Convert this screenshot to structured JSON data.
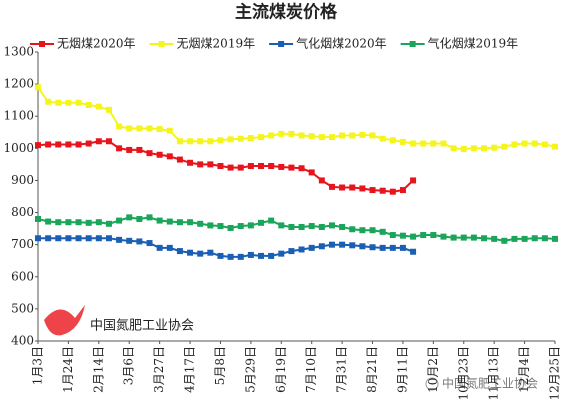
{
  "chart_data": {
    "type": "line",
    "title": "主流煤炭价格",
    "categories": [
      "1月3日",
      null,
      null,
      "1月24日",
      null,
      null,
      "2月14日",
      null,
      null,
      "3月6日",
      null,
      null,
      "3月27日",
      null,
      null,
      "4月17日",
      null,
      null,
      "5月8日",
      null,
      null,
      "5月29日",
      null,
      null,
      "6月19日",
      null,
      null,
      "7月10日",
      null,
      null,
      "7月31日",
      null,
      null,
      "8月21日",
      null,
      null,
      "9月11日",
      null,
      null,
      "10月2日",
      null,
      null,
      "10月23日",
      null,
      null,
      "11月13日",
      null,
      null,
      "12月4日",
      null,
      null,
      "12月25日"
    ],
    "series": [
      {
        "name": "无烟煤2020年",
        "color": "#e8141c",
        "values": [
          1010,
          1012,
          1012,
          1012,
          1012,
          1015,
          1022,
          1022,
          1000,
          995,
          995,
          985,
          980,
          975,
          965,
          955,
          950,
          950,
          945,
          940,
          940,
          945,
          945,
          945,
          942,
          940,
          938,
          925,
          900,
          880,
          878,
          878,
          875,
          870,
          868,
          865,
          870,
          900,
          null,
          null,
          null,
          null,
          null,
          null,
          null,
          null,
          null,
          null,
          null,
          null,
          null,
          null
        ]
      },
      {
        "name": "无烟煤2019年",
        "color": "#f5f51e",
        "values": [
          1190,
          1145,
          1142,
          1142,
          1142,
          1135,
          1130,
          1120,
          1068,
          1062,
          1062,
          1062,
          1060,
          1055,
          1022,
          1022,
          1022,
          1022,
          1025,
          1028,
          1030,
          1032,
          1035,
          1040,
          1045,
          1045,
          1040,
          1038,
          1035,
          1035,
          1040,
          1040,
          1042,
          1040,
          1030,
          1025,
          1020,
          1015,
          1015,
          1015,
          1015,
          1000,
          998,
          1000,
          1000,
          1002,
          1005,
          1012,
          1015,
          1015,
          1012,
          1005
        ]
      },
      {
        "name": "气化烟煤2020年",
        "color": "#1a5fb4",
        "values": [
          720,
          720,
          720,
          720,
          720,
          720,
          720,
          720,
          715,
          712,
          710,
          705,
          690,
          690,
          680,
          675,
          672,
          675,
          665,
          662,
          662,
          668,
          665,
          665,
          672,
          680,
          685,
          690,
          695,
          700,
          700,
          698,
          695,
          692,
          690,
          690,
          690,
          678,
          null,
          null,
          null,
          null,
          null,
          null,
          null,
          null,
          null,
          null,
          null,
          null,
          null,
          null
        ]
      },
      {
        "name": "气化烟煤2019年",
        "color": "#1aa55a",
        "values": [
          780,
          772,
          770,
          770,
          770,
          768,
          770,
          765,
          775,
          785,
          780,
          785,
          775,
          772,
          770,
          770,
          765,
          760,
          758,
          752,
          758,
          760,
          768,
          775,
          760,
          755,
          755,
          758,
          755,
          760,
          755,
          748,
          745,
          745,
          740,
          730,
          728,
          725,
          730,
          730,
          725,
          722,
          722,
          722,
          720,
          718,
          712,
          718,
          718,
          720,
          720,
          718
        ]
      }
    ],
    "ylim": [
      400,
      1300
    ],
    "yticks": [
      400,
      500,
      600,
      700,
      800,
      900,
      1000,
      1100,
      1200,
      1300
    ],
    "grid": false,
    "legend": "top",
    "annotations": [
      "中国氮肥工业协会",
      "中国氮肥工业协会"
    ]
  }
}
